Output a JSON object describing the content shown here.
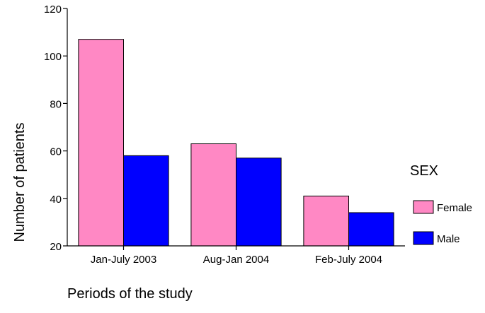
{
  "chart_data": {
    "type": "bar",
    "title": "",
    "xlabel": "Periods of the study",
    "ylabel": "Number of patients",
    "categories": [
      "Jan-July 2003",
      "Aug-Jan 2004",
      "Feb-July 2004"
    ],
    "series": [
      {
        "name": "Female",
        "values": [
          107,
          63,
          41
        ],
        "color": "#ff88c4"
      },
      {
        "name": "Male",
        "values": [
          58,
          57,
          34
        ],
        "color": "#0000ff"
      }
    ],
    "ylim": [
      20,
      120
    ],
    "yticks": [
      20,
      40,
      60,
      80,
      100,
      120
    ],
    "grid": false,
    "legend": {
      "title": "SEX",
      "position": "right"
    }
  }
}
